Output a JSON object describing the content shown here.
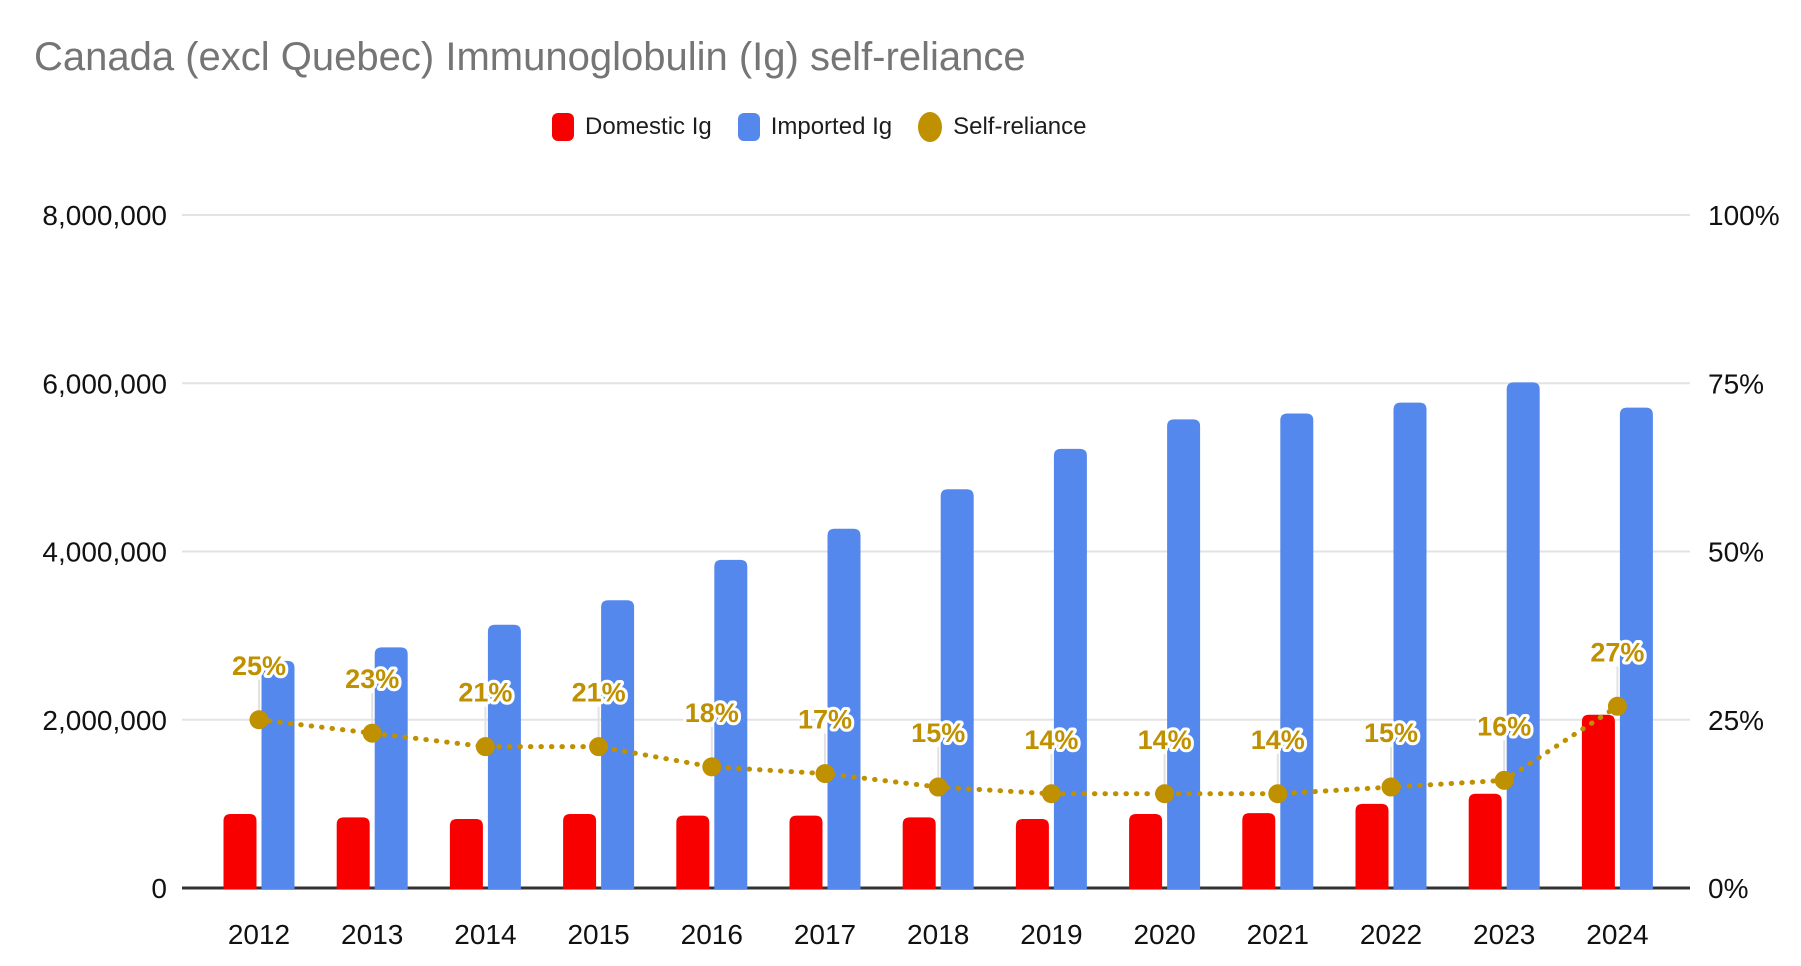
{
  "title": "Canada (excl Quebec) Immunoglobulin (Ig) self-reliance",
  "legend": [
    {
      "label": "Domestic Ig",
      "color": "#f90000",
      "shape": "square",
      "icon": "red-square-swatch"
    },
    {
      "label": "Imported Ig",
      "color": "#5588ec",
      "shape": "square",
      "icon": "blue-square-swatch"
    },
    {
      "label": "Self-reliance",
      "color": "#bf9000",
      "shape": "circle",
      "icon": "gold-circle-swatch"
    }
  ],
  "colors": {
    "domestic_bar": "#f90000",
    "imported_bar": "#5588ec",
    "self_reliance_line": "#bf9000",
    "title_text": "#757575",
    "axis_text": "#111111",
    "gridline": "#e3e3e3",
    "baseline": "#333333",
    "annotation_stem": "#e2e2e2",
    "annotation_halo": "#ffffff",
    "background": "#ffffff"
  },
  "chart_data": {
    "type": "bar",
    "subtype": "combo-bar-line",
    "title": "Canada (excl Quebec) Immunoglobulin (Ig) self-reliance",
    "categories": [
      "2012",
      "2013",
      "2014",
      "2015",
      "2016",
      "2017",
      "2018",
      "2019",
      "2020",
      "2021",
      "2022",
      "2023",
      "2024"
    ],
    "series": [
      {
        "name": "Domestic Ig",
        "type": "bar",
        "axis": "left",
        "color": "#f90000",
        "values": [
          880000,
          840000,
          820000,
          880000,
          860000,
          860000,
          840000,
          820000,
          880000,
          890000,
          1000000,
          1120000,
          2060000
        ]
      },
      {
        "name": "Imported Ig",
        "type": "bar",
        "axis": "left",
        "color": "#5588ec",
        "values": [
          2700000,
          2860000,
          3130000,
          3420000,
          3900000,
          4270000,
          4740000,
          5220000,
          5570000,
          5640000,
          5770000,
          6010000,
          5710000
        ]
      },
      {
        "name": "Self-reliance",
        "type": "line",
        "style": "dotted",
        "axis": "right",
        "color": "#bf9000",
        "values": [
          25,
          23,
          21,
          21,
          18,
          17,
          15,
          14,
          14,
          14,
          15,
          16,
          27
        ],
        "labels": [
          "25%",
          "23%",
          "21%",
          "21%",
          "18%",
          "17%",
          "15%",
          "14%",
          "14%",
          "14%",
          "15%",
          "16%",
          "27%"
        ]
      }
    ],
    "left_axis": {
      "range": [
        0,
        8000000
      ],
      "ticks": [
        "0",
        "2,000,000",
        "4,000,000",
        "6,000,000",
        "8,000,000"
      ]
    },
    "right_axis": {
      "range": [
        0,
        100
      ],
      "ticks": [
        "0%",
        "25%",
        "50%",
        "75%",
        "100%"
      ]
    },
    "grid": true,
    "legend_position": "top"
  }
}
